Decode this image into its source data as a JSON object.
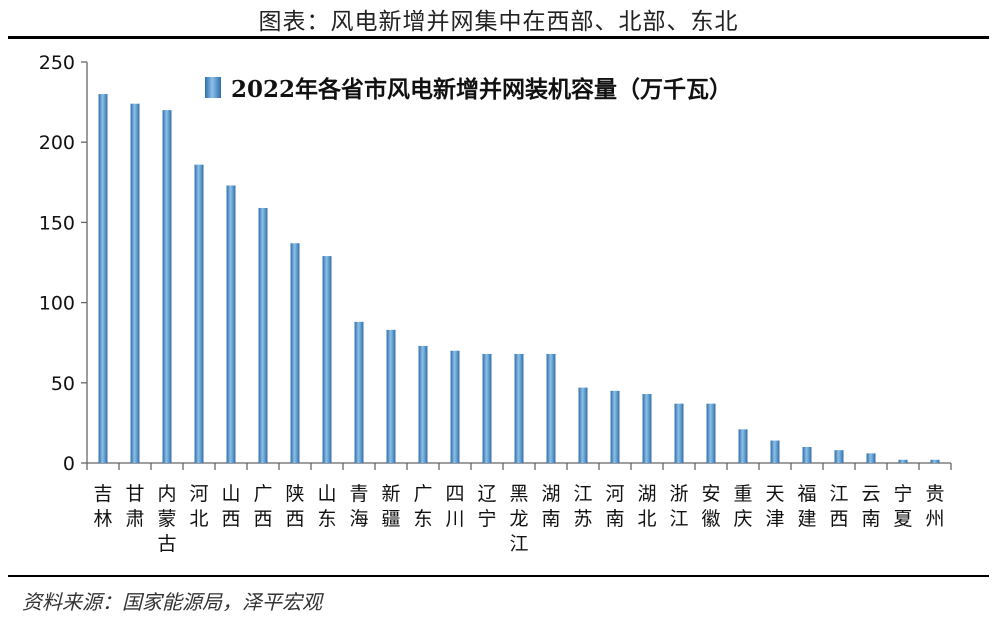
{
  "header": {
    "title": "图表：风电新增并网集中在西部、北部、东北"
  },
  "footer": {
    "source": "资料来源：国家能源局，泽平宏观"
  },
  "chart_data": {
    "type": "bar",
    "categories": [
      "吉林",
      "甘肃",
      "内蒙古",
      "河北",
      "山西",
      "广西",
      "陕西",
      "山东",
      "青海",
      "新疆",
      "广东",
      "四川",
      "辽宁",
      "黑龙江",
      "湖南",
      "江苏",
      "河南",
      "湖北",
      "浙江",
      "安徽",
      "重庆",
      "天津",
      "福建",
      "江西",
      "云南",
      "宁夏",
      "贵州"
    ],
    "series": [
      {
        "name": "2022年各省市风电新增并网装机容量（万千瓦）",
        "values": [
          230,
          224,
          220,
          186,
          173,
          159,
          137,
          129,
          88,
          83,
          73,
          70,
          68,
          68,
          68,
          47,
          45,
          43,
          37,
          37,
          21,
          14,
          10,
          8,
          6,
          2,
          2
        ]
      }
    ],
    "ylim": [
      0,
      250
    ],
    "yticks": [
      0,
      50,
      100,
      150,
      200,
      250
    ],
    "legend_position": "top-center",
    "grid": false,
    "bar_color": "#4f8fc6"
  }
}
